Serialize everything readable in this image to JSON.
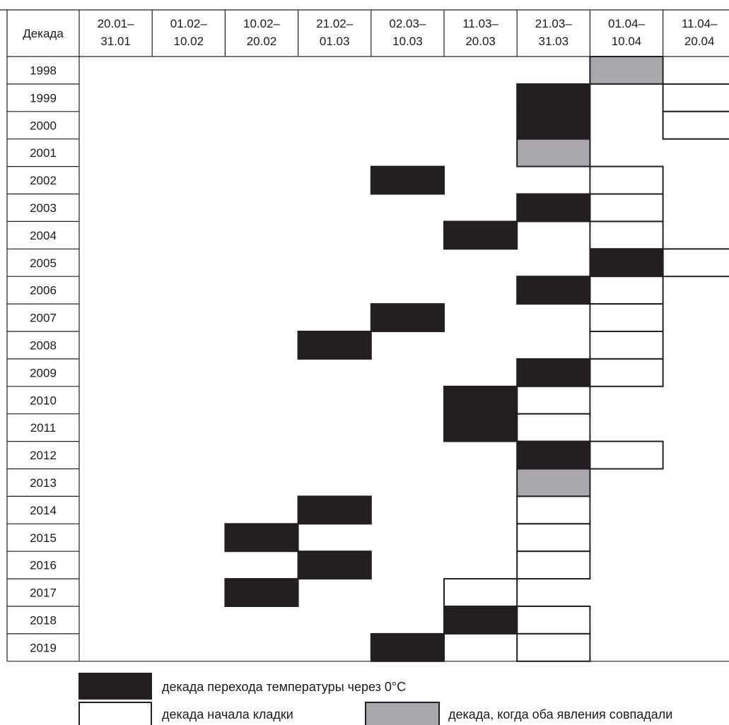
{
  "chart_data": {
    "type": "table",
    "header_label": "Декада",
    "decades": [
      [
        "20.01–",
        "31.01"
      ],
      [
        "01.02–",
        "10.02"
      ],
      [
        "10.02–",
        "20.02"
      ],
      [
        "21.02–",
        "01.03"
      ],
      [
        "02.03–",
        "10.03"
      ],
      [
        "11.03–",
        "20.03"
      ],
      [
        "21.03–",
        "31.03"
      ],
      [
        "01.04–",
        "10.04"
      ],
      [
        "11.04–",
        "20.04"
      ]
    ],
    "years": [
      1998,
      1999,
      2000,
      2001,
      2002,
      2003,
      2004,
      2005,
      2006,
      2007,
      2008,
      2009,
      2010,
      2011,
      2012,
      2013,
      2014,
      2015,
      2016,
      2017,
      2018,
      2019
    ],
    "records": [
      {
        "year": 1998,
        "transition_decade": 7,
        "laying_decade": 7
      },
      {
        "year": 1999,
        "transition_decade": 6,
        "laying_decade": 8
      },
      {
        "year": 2000,
        "transition_decade": 6,
        "laying_decade": 8
      },
      {
        "year": 2001,
        "transition_decade": 6,
        "laying_decade": 6
      },
      {
        "year": 2002,
        "transition_decade": 4,
        "laying_decade": 7
      },
      {
        "year": 2003,
        "transition_decade": 6,
        "laying_decade": 7
      },
      {
        "year": 2004,
        "transition_decade": 5,
        "laying_decade": 7
      },
      {
        "year": 2005,
        "transition_decade": 7,
        "laying_decade": 8
      },
      {
        "year": 2006,
        "transition_decade": 6,
        "laying_decade": 7
      },
      {
        "year": 2007,
        "transition_decade": 4,
        "laying_decade": 7
      },
      {
        "year": 2008,
        "transition_decade": 3,
        "laying_decade": 7
      },
      {
        "year": 2009,
        "transition_decade": 6,
        "laying_decade": 7
      },
      {
        "year": 2010,
        "transition_decade": 5,
        "laying_decade": 6
      },
      {
        "year": 2011,
        "transition_decade": 5,
        "laying_decade": 6
      },
      {
        "year": 2012,
        "transition_decade": 6,
        "laying_decade": 7
      },
      {
        "year": 2013,
        "transition_decade": 6,
        "laying_decade": 6
      },
      {
        "year": 2014,
        "transition_decade": 3,
        "laying_decade": 6
      },
      {
        "year": 2015,
        "transition_decade": 2,
        "laying_decade": 6
      },
      {
        "year": 2016,
        "transition_decade": 3,
        "laying_decade": 6
      },
      {
        "year": 2017,
        "transition_decade": 2,
        "laying_decade": 5
      },
      {
        "year": 2018,
        "transition_decade": 5,
        "laying_decade": 6
      },
      {
        "year": 2019,
        "transition_decade": 4,
        "laying_decade": 6
      }
    ],
    "legend": {
      "transition": "декада перехода температуры через 0°C",
      "laying": "декада начала кладки",
      "both": "декада, когда оба явления совпадали"
    },
    "colors": {
      "transition": "#231f20",
      "laying": "#ffffff",
      "both": "#a7a9ac",
      "line": "#231f20"
    }
  }
}
